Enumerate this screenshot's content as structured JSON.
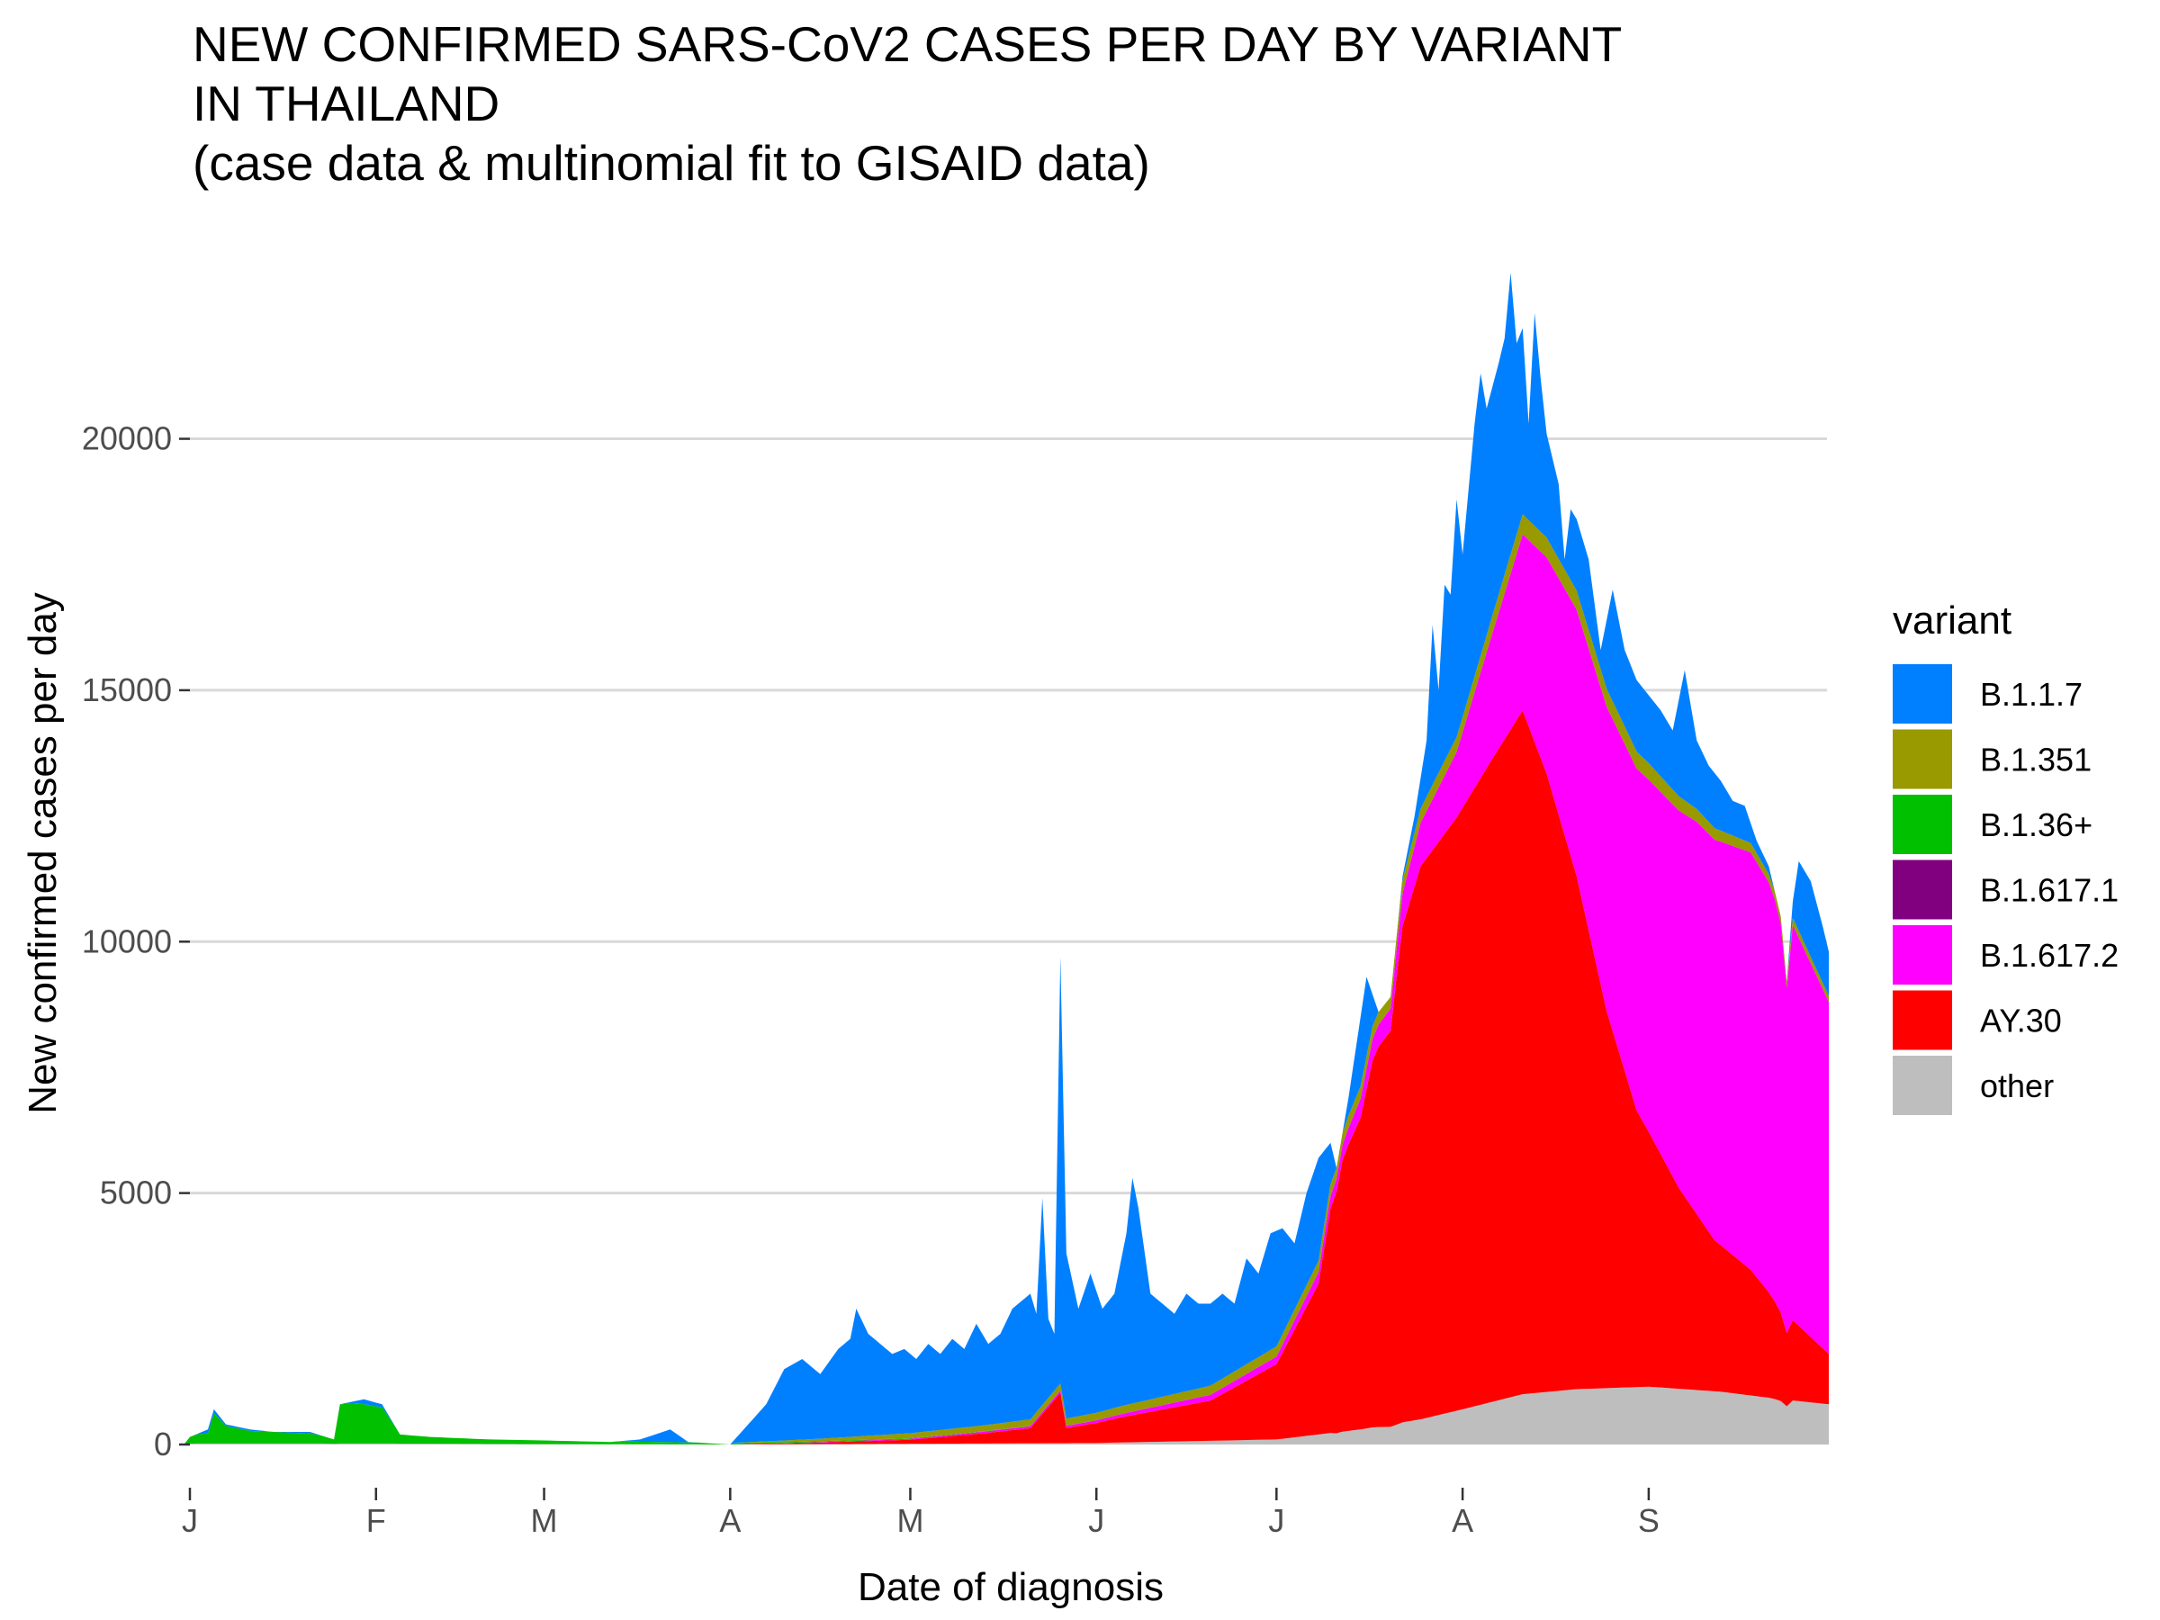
{
  "chart_data": {
    "type": "area",
    "stacked": true,
    "title_lines": [
      "NEW CONFIRMED SARS-CoV2 CASES PER DAY BY VARIANT",
      "IN THAILAND",
      "(case data & multinomial fit to GISAID data)"
    ],
    "xlabel": "Date of diagnosis",
    "ylabel": "New confirmed cases per day",
    "ylim": [
      0,
      23500
    ],
    "y_ticks": [
      0,
      5000,
      10000,
      15000,
      20000
    ],
    "x_ticks": [
      {
        "label": "J",
        "day": 0
      },
      {
        "label": "F",
        "day": 31
      },
      {
        "label": "M",
        "day": 59
      },
      {
        "label": "A",
        "day": 90
      },
      {
        "label": "M",
        "day": 120
      },
      {
        "label": "J",
        "day": 151
      },
      {
        "label": "J",
        "day": 181
      },
      {
        "label": "A",
        "day": 212
      },
      {
        "label": "S",
        "day": 243
      }
    ],
    "x_range_days": [
      -1,
      273
    ],
    "grid": "horizontal",
    "legend_title": "variant",
    "legend_position": "right",
    "series": [
      {
        "name": "other",
        "color": "#bebebe",
        "points": [
          [
            -1,
            0
          ],
          [
            0,
            20
          ],
          [
            40,
            20
          ],
          [
            59,
            10
          ],
          [
            90,
            0
          ],
          [
            151,
            30
          ],
          [
            181,
            100
          ],
          [
            195,
            300
          ],
          [
            205,
            500
          ],
          [
            212,
            700
          ],
          [
            222,
            1000
          ],
          [
            231,
            1100
          ],
          [
            243,
            1150
          ],
          [
            255,
            1050
          ],
          [
            265,
            900
          ],
          [
            273,
            800
          ]
        ]
      },
      {
        "name": "AY.30",
        "color": "#ff0000",
        "points": [
          [
            -1,
            0
          ],
          [
            90,
            0
          ],
          [
            105,
            30
          ],
          [
            120,
            80
          ],
          [
            132,
            200
          ],
          [
            140,
            300
          ],
          [
            145,
            1000
          ],
          [
            146,
            300
          ],
          [
            151,
            400
          ],
          [
            155,
            500
          ],
          [
            160,
            600
          ],
          [
            170,
            800
          ],
          [
            181,
            1500
          ],
          [
            188,
            3000
          ],
          [
            191,
            5200
          ],
          [
            195,
            6200
          ],
          [
            201,
            9500
          ],
          [
            205,
            11000
          ],
          [
            211,
            11800
          ],
          [
            217,
            12800
          ],
          [
            222,
            13600
          ],
          [
            226,
            12300
          ],
          [
            231,
            10200
          ],
          [
            236,
            7500
          ],
          [
            241,
            5500
          ],
          [
            248,
            4000
          ],
          [
            254,
            3000
          ],
          [
            260,
            2500
          ],
          [
            266,
            1700
          ],
          [
            273,
            1000
          ]
        ]
      },
      {
        "name": "B.1.617.1",
        "color": "#800080",
        "points": [
          [
            -1,
            0
          ],
          [
            273,
            0
          ]
        ]
      },
      {
        "name": "B.1.617.2",
        "color": "#ff00ff",
        "points": [
          [
            -1,
            0
          ],
          [
            90,
            0
          ],
          [
            120,
            20
          ],
          [
            151,
            50
          ],
          [
            181,
            150
          ],
          [
            190,
            250
          ],
          [
            200,
            500
          ],
          [
            211,
            1300
          ],
          [
            222,
            3500
          ],
          [
            231,
            5300
          ],
          [
            241,
            6800
          ],
          [
            251,
            7800
          ],
          [
            260,
            8300
          ],
          [
            266,
            8000
          ],
          [
            273,
            7000
          ]
        ]
      },
      {
        "name": "B.1.36+",
        "color": "#00c000",
        "points": [
          [
            -1,
            0
          ],
          [
            0,
            180
          ],
          [
            3,
            200
          ],
          [
            4,
            600
          ],
          [
            6,
            350
          ],
          [
            10,
            250
          ],
          [
            20,
            200
          ],
          [
            24,
            120
          ],
          [
            25,
            780
          ],
          [
            28,
            800
          ],
          [
            32,
            720
          ],
          [
            35,
            200
          ],
          [
            40,
            150
          ],
          [
            59,
            80
          ],
          [
            75,
            50
          ],
          [
            90,
            30
          ],
          [
            100,
            20
          ],
          [
            120,
            10
          ],
          [
            151,
            0
          ],
          [
            273,
            0
          ]
        ]
      },
      {
        "name": "B.1.351",
        "color": "#999900",
        "points": [
          [
            -1,
            0
          ],
          [
            90,
            0
          ],
          [
            105,
            50
          ],
          [
            120,
            100
          ],
          [
            151,
            150
          ],
          [
            181,
            200
          ],
          [
            195,
            250
          ],
          [
            212,
            300
          ],
          [
            222,
            400
          ],
          [
            231,
            380
          ],
          [
            243,
            330
          ],
          [
            255,
            220
          ],
          [
            265,
            150
          ],
          [
            273,
            120
          ]
        ]
      },
      {
        "name": "B.1.1.7",
        "color": "#0080ff",
        "points": [
          [
            -1,
            0
          ],
          [
            60,
            0
          ],
          [
            75,
            40
          ],
          [
            85,
            50
          ],
          [
            90,
            50
          ],
          [
            95,
            500
          ],
          [
            100,
            1300
          ],
          [
            106,
            1500
          ],
          [
            110,
            1700
          ],
          [
            112,
            2300
          ],
          [
            116,
            1700
          ],
          [
            120,
            1600
          ],
          [
            125,
            1650
          ],
          [
            130,
            1700
          ],
          [
            135,
            1800
          ],
          [
            138,
            2200
          ],
          [
            140,
            1500
          ],
          [
            141,
            2000
          ],
          [
            142,
            4000
          ],
          [
            143,
            1500
          ],
          [
            144,
            2000
          ],
          [
            145,
            7000
          ],
          [
            146,
            2000
          ],
          [
            150,
            2300
          ],
          [
            153,
            2000
          ],
          [
            155,
            2700
          ],
          [
            156,
            3500
          ],
          [
            157,
            2000
          ],
          [
            160,
            1800
          ],
          [
            166,
            1900
          ],
          [
            171,
            2000
          ],
          [
            176,
            2000
          ],
          [
            181,
            1500
          ],
          [
            186,
            1500
          ],
          [
            191,
            1700
          ],
          [
            196,
            1700
          ],
          [
            201,
            1900
          ],
          [
            205,
            1700
          ],
          [
            211,
            2100
          ],
          [
            216,
            2000
          ],
          [
            220,
            2000
          ],
          [
            224,
            2300
          ],
          [
            228,
            2200
          ],
          [
            233,
            2100
          ],
          [
            238,
            1700
          ],
          [
            243,
            1500
          ],
          [
            248,
            1400
          ],
          [
            253,
            1300
          ],
          [
            258,
            1100
          ],
          [
            263,
            900
          ],
          [
            268,
            800
          ],
          [
            273,
            700
          ]
        ]
      }
    ],
    "total_points": [
      [
        -1,
        0
      ],
      [
        0,
        150
      ],
      [
        3,
        300
      ],
      [
        4,
        700
      ],
      [
        6,
        400
      ],
      [
        10,
        300
      ],
      [
        14,
        250
      ],
      [
        20,
        250
      ],
      [
        24,
        100
      ],
      [
        25,
        800
      ],
      [
        27,
        850
      ],
      [
        29,
        900
      ],
      [
        32,
        800
      ],
      [
        35,
        200
      ],
      [
        40,
        150
      ],
      [
        50,
        100
      ],
      [
        59,
        80
      ],
      [
        70,
        50
      ],
      [
        75,
        100
      ],
      [
        80,
        300
      ],
      [
        83,
        50
      ],
      [
        87,
        20
      ],
      [
        90,
        0
      ],
      [
        93,
        400
      ],
      [
        96,
        800
      ],
      [
        99,
        1500
      ],
      [
        102,
        1700
      ],
      [
        105,
        1400
      ],
      [
        108,
        1900
      ],
      [
        110,
        2100
      ],
      [
        111,
        2700
      ],
      [
        113,
        2200
      ],
      [
        115,
        2000
      ],
      [
        117,
        1800
      ],
      [
        119,
        1900
      ],
      [
        121,
        1700
      ],
      [
        123,
        2000
      ],
      [
        125,
        1800
      ],
      [
        127,
        2100
      ],
      [
        129,
        1900
      ],
      [
        131,
        2400
      ],
      [
        133,
        2000
      ],
      [
        135,
        2200
      ],
      [
        137,
        2700
      ],
      [
        139,
        2900
      ],
      [
        140,
        3000
      ],
      [
        141,
        2600
      ],
      [
        142,
        4900
      ],
      [
        143,
        2500
      ],
      [
        144,
        2200
      ],
      [
        145,
        9700
      ],
      [
        146,
        3800
      ],
      [
        148,
        2700
      ],
      [
        150,
        3400
      ],
      [
        152,
        2700
      ],
      [
        154,
        3000
      ],
      [
        156,
        4200
      ],
      [
        157,
        5300
      ],
      [
        158,
        4700
      ],
      [
        160,
        3000
      ],
      [
        162,
        2800
      ],
      [
        164,
        2600
      ],
      [
        166,
        3000
      ],
      [
        168,
        2800
      ],
      [
        170,
        2800
      ],
      [
        172,
        3000
      ],
      [
        174,
        2800
      ],
      [
        176,
        3700
      ],
      [
        178,
        3400
      ],
      [
        180,
        4200
      ],
      [
        182,
        4300
      ],
      [
        184,
        4000
      ],
      [
        186,
        5000
      ],
      [
        188,
        5700
      ],
      [
        190,
        6000
      ],
      [
        191,
        5500
      ],
      [
        193,
        6900
      ],
      [
        195,
        8500
      ],
      [
        196,
        9300
      ],
      [
        198,
        8600
      ],
      [
        200,
        8900
      ],
      [
        202,
        11300
      ],
      [
        204,
        12500
      ],
      [
        206,
        14000
      ],
      [
        207,
        16300
      ],
      [
        208,
        15000
      ],
      [
        209,
        17100
      ],
      [
        210,
        16900
      ],
      [
        211,
        18800
      ],
      [
        212,
        17700
      ],
      [
        214,
        20300
      ],
      [
        215,
        21300
      ],
      [
        216,
        20600
      ],
      [
        218,
        21500
      ],
      [
        219,
        22000
      ],
      [
        220,
        23300
      ],
      [
        221,
        21900
      ],
      [
        222,
        22200
      ],
      [
        223,
        20300
      ],
      [
        224,
        22500
      ],
      [
        225,
        21200
      ],
      [
        226,
        20100
      ],
      [
        228,
        19100
      ],
      [
        229,
        17600
      ],
      [
        230,
        18600
      ],
      [
        231,
        18400
      ],
      [
        233,
        17600
      ],
      [
        235,
        15800
      ],
      [
        237,
        17000
      ],
      [
        239,
        15800
      ],
      [
        241,
        15200
      ],
      [
        243,
        14900
      ],
      [
        245,
        14600
      ],
      [
        247,
        14200
      ],
      [
        249,
        15400
      ],
      [
        251,
        14000
      ],
      [
        253,
        13500
      ],
      [
        255,
        13200
      ],
      [
        257,
        12800
      ],
      [
        259,
        12700
      ],
      [
        261,
        12000
      ],
      [
        263,
        11500
      ],
      [
        265,
        10500
      ],
      [
        266,
        9200
      ],
      [
        267,
        10800
      ],
      [
        268,
        11600
      ],
      [
        270,
        11200
      ],
      [
        272,
        10300
      ],
      [
        273,
        9800
      ]
    ]
  }
}
